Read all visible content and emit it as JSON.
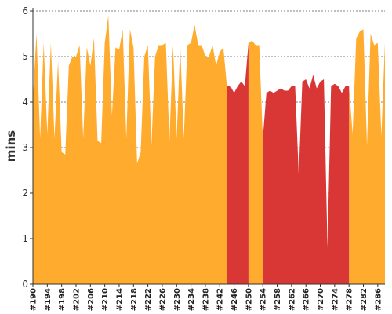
{
  "chart_data": {
    "type": "area",
    "title": "",
    "xlabel": "",
    "ylabel": "mins",
    "ylim": [
      0,
      6
    ],
    "yticks": [
      0,
      1,
      2,
      3,
      4,
      5,
      6
    ],
    "grid": true,
    "x": [
      190,
      191,
      192,
      193,
      194,
      195,
      196,
      197,
      198,
      199,
      200,
      201,
      202,
      203,
      204,
      205,
      206,
      207,
      208,
      209,
      210,
      211,
      212,
      213,
      214,
      215,
      216,
      217,
      218,
      219,
      220,
      221,
      222,
      223,
      224,
      225,
      226,
      227,
      228,
      229,
      230,
      231,
      232,
      233,
      234,
      235,
      236,
      237,
      238,
      239,
      240,
      241,
      242,
      243,
      244,
      245,
      246,
      247,
      248,
      249,
      250,
      251,
      252,
      253,
      254,
      255,
      256,
      257,
      258,
      259,
      260,
      261,
      262,
      263,
      264,
      265,
      266,
      267,
      268,
      269,
      270,
      271,
      272,
      273,
      274,
      275,
      276,
      277,
      278,
      279,
      280,
      281,
      282,
      283,
      284,
      285,
      286,
      287,
      288
    ],
    "xtick_labels": [
      "#190",
      "#194",
      "#198",
      "#202",
      "#206",
      "#210",
      "#214",
      "#218",
      "#222",
      "#226",
      "#230",
      "#234",
      "#238",
      "#242",
      "#246",
      "#250",
      "#254",
      "#258",
      "#262",
      "#266",
      "#270",
      "#274",
      "#278",
      "#282",
      "#286"
    ],
    "values": [
      4.1,
      5.5,
      3.2,
      5.3,
      3.3,
      5.3,
      3.2,
      4.9,
      2.9,
      2.85,
      4.8,
      5.0,
      5.0,
      5.25,
      3.2,
      5.2,
      4.8,
      5.4,
      3.15,
      3.1,
      5.3,
      5.9,
      3.7,
      5.2,
      5.15,
      5.6,
      3.2,
      5.6,
      5.2,
      2.65,
      2.9,
      5.0,
      5.25,
      3.05,
      5.0,
      5.25,
      5.25,
      5.3,
      3.15,
      5.25,
      3.2,
      5.25,
      3.2,
      5.25,
      5.3,
      5.7,
      5.25,
      5.25,
      5.0,
      5.0,
      5.25,
      4.8,
      5.1,
      5.2,
      4.35,
      4.35,
      4.2,
      4.35,
      4.45,
      4.35,
      5.3,
      5.35,
      5.25,
      5.25,
      3.2,
      4.2,
      4.25,
      4.2,
      4.25,
      4.3,
      4.25,
      4.25,
      4.35,
      4.35,
      2.4,
      4.45,
      4.5,
      4.3,
      4.6,
      4.3,
      4.45,
      4.5,
      0.8,
      4.35,
      4.4,
      4.35,
      4.2,
      4.35,
      4.35,
      3.3,
      5.4,
      5.55,
      5.6,
      3.05,
      5.5,
      5.25,
      5.3,
      3.25,
      5.3
    ],
    "series": [
      {
        "name": "",
        "color": "#ffab2e",
        "segments": [
          [
            190,
            244
          ],
          [
            250,
            254
          ],
          [
            278,
            288
          ]
        ]
      },
      {
        "name": "",
        "color": "#d93636",
        "segments": [
          [
            244,
            250
          ],
          [
            254,
            278
          ]
        ]
      }
    ]
  }
}
